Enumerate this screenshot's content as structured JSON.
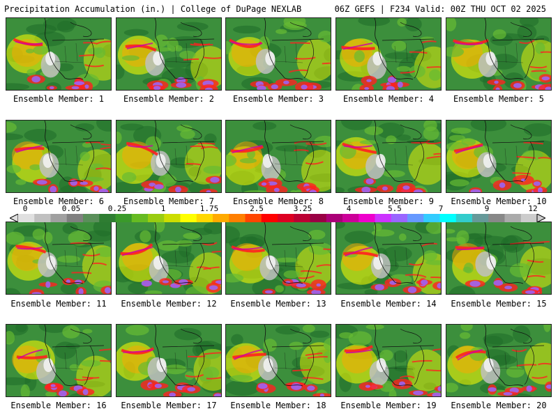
{
  "header": {
    "left_title": "Precipitation Accumulation (in.) | College of DuPage NEXLAB",
    "right_title": "06Z GEFS | F234 Valid: 00Z THU OCT 02 2025"
  },
  "members": [
    {
      "label": "Ensemble Member: 1"
    },
    {
      "label": "Ensemble Member: 2"
    },
    {
      "label": "Ensemble Member: 3"
    },
    {
      "label": "Ensemble Member: 4"
    },
    {
      "label": "Ensemble Member: 5"
    },
    {
      "label": "Ensemble Member: 6"
    },
    {
      "label": "Ensemble Member: 7"
    },
    {
      "label": "Ensemble Member: 8"
    },
    {
      "label": "Ensemble Member: 9"
    },
    {
      "label": "Ensemble Member: 10"
    },
    {
      "label": "Ensemble Member: 11"
    },
    {
      "label": "Ensemble Member: 12"
    },
    {
      "label": "Ensemble Member: 13"
    },
    {
      "label": "Ensemble Member: 14"
    },
    {
      "label": "Ensemble Member: 15"
    },
    {
      "label": "Ensemble Member: 16"
    },
    {
      "label": "Ensemble Member: 17"
    },
    {
      "label": "Ensemble Member: 18"
    },
    {
      "label": "Ensemble Member: 19"
    },
    {
      "label": "Ensemble Member: 20"
    }
  ],
  "colorbar": {
    "tick_labels": [
      "0",
      "0.05",
      "0.25",
      "1",
      "1.75",
      "2.5",
      "3.25",
      "4",
      "5.5",
      "7",
      "9",
      "12"
    ],
    "colors": [
      "#e0e0e0",
      "#c0c0c0",
      "#a0a0a0",
      "#808080",
      "#5a8f5a",
      "#2e7d32",
      "#3a9a2a",
      "#66bb22",
      "#99cc11",
      "#ccdd00",
      "#ffff00",
      "#ffd700",
      "#ffaa00",
      "#ff7f00",
      "#ff4500",
      "#ff0000",
      "#dd0022",
      "#bb0033",
      "#990044",
      "#aa0077",
      "#cc0099",
      "#ee00cc",
      "#cc33ff",
      "#9966ff",
      "#6699ff",
      "#33ccff",
      "#00ffff",
      "#33cccc",
      "#669999",
      "#888888",
      "#aaaaaa",
      "#cccccc"
    ]
  },
  "map_colors": {
    "base_green": "#3c8f3c",
    "dark_green": "#1f6e2a",
    "light_green": "#66bb33",
    "yellow": "#ffff00",
    "orange": "#ffa500",
    "red": "#ff2020",
    "magenta": "#cc00aa",
    "purple": "#9966ff",
    "grey": "#bfbfbf",
    "white": "#f2f2f2",
    "border": "#111111"
  }
}
